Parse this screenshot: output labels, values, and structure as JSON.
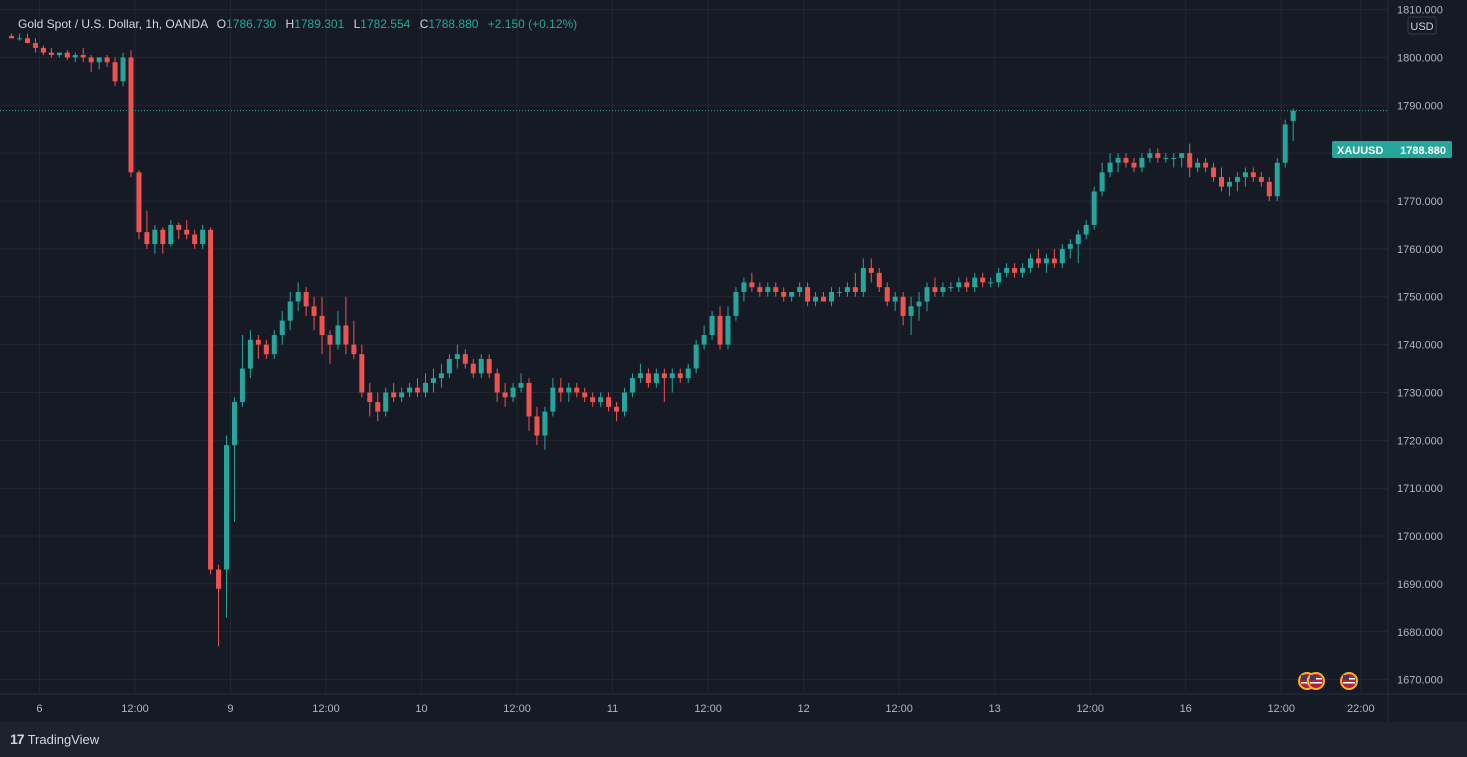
{
  "legend": {
    "symbol": "Gold Spot / U.S. Dollar, 1h, OANDA",
    "o_label": "O",
    "o": "1786.730",
    "h_label": "H",
    "h": "1789.301",
    "l_label": "L",
    "l": "1782.554",
    "c_label": "C",
    "c": "1788.880",
    "change": "+2.150 (+0.12%)"
  },
  "brand": "TradingView",
  "colors": {
    "up": "#26a69a",
    "down": "#ef5350",
    "bg": "#161a25",
    "grid": "#232733",
    "text": "#b2b5be"
  },
  "chart_data": {
    "type": "candlestick",
    "symbol": "XAUUSD",
    "currency": "USD",
    "last_price": "1788.880",
    "ylim": [
      1667,
      1812
    ],
    "y_ticks": [
      "1670.000",
      "1680.000",
      "1690.000",
      "1700.000",
      "1710.000",
      "1720.000",
      "1730.000",
      "1740.000",
      "1750.000",
      "1760.000",
      "1770.000",
      "1780.000",
      "1790.000",
      "1800.000",
      "1810.000"
    ],
    "x_ticks": [
      "6",
      "12:00",
      "9",
      "12:00",
      "10",
      "12:00",
      "11",
      "12:00",
      "12",
      "12:00",
      "13",
      "12:00",
      "16",
      "12:00",
      "22:00"
    ],
    "x_tick_index": [
      3.5,
      15.5,
      27.5,
      39.5,
      51.5,
      63.5,
      75.5,
      87.5,
      99.5,
      111.5,
      123.5,
      135.5,
      147.5,
      159.5,
      169.5
    ],
    "candles": [
      [
        1804.5,
        1805,
        1804,
        1804
      ],
      [
        1804,
        1805,
        1803.5,
        1804
      ],
      [
        1804,
        1805,
        1803,
        1803
      ],
      [
        1803,
        1804,
        1801,
        1802
      ],
      [
        1802,
        1802.5,
        1800.5,
        1801
      ],
      [
        1801,
        1802,
        1800,
        1800.5
      ],
      [
        1800.5,
        1801,
        1800,
        1801
      ],
      [
        1801,
        1801.5,
        1799.5,
        1800
      ],
      [
        1800,
        1801,
        1799,
        1800.5
      ],
      [
        1800.5,
        1802,
        1799,
        1800
      ],
      [
        1800,
        1800.5,
        1797,
        1799
      ],
      [
        1799,
        1800,
        1797.5,
        1800
      ],
      [
        1800,
        1800.5,
        1798,
        1799
      ],
      [
        1799,
        1800,
        1794,
        1795
      ],
      [
        1795,
        1801,
        1794,
        1800
      ],
      [
        1800,
        1801.5,
        1775,
        1776
      ],
      [
        1776,
        1776.5,
        1762,
        1763.5
      ],
      [
        1763.5,
        1768,
        1760,
        1761
      ],
      [
        1761,
        1765,
        1759,
        1764
      ],
      [
        1764,
        1764.5,
        1759,
        1761
      ],
      [
        1761,
        1766,
        1760.5,
        1765
      ],
      [
        1765,
        1765.5,
        1762,
        1764
      ],
      [
        1764,
        1766,
        1762,
        1763
      ],
      [
        1763,
        1764,
        1760,
        1761
      ],
      [
        1761,
        1765,
        1760,
        1764
      ],
      [
        1764,
        1764.5,
        1692,
        1693
      ],
      [
        1693,
        1694,
        1677,
        1689
      ],
      [
        1693,
        1721,
        1683,
        1719
      ],
      [
        1719,
        1729,
        1703,
        1728
      ],
      [
        1728,
        1742,
        1727,
        1735
      ],
      [
        1735,
        1743,
        1733,
        1741
      ],
      [
        1741,
        1742,
        1737,
        1740
      ],
      [
        1740,
        1741,
        1737,
        1738
      ],
      [
        1738,
        1743,
        1737,
        1742
      ],
      [
        1742,
        1747,
        1740,
        1745
      ],
      [
        1745,
        1751,
        1743,
        1749
      ],
      [
        1749,
        1753,
        1747,
        1751
      ],
      [
        1751,
        1752,
        1746,
        1748
      ],
      [
        1748,
        1750,
        1743,
        1746
      ],
      [
        1746,
        1750,
        1738,
        1742
      ],
      [
        1742,
        1743,
        1736,
        1740
      ],
      [
        1740,
        1747,
        1739,
        1744
      ],
      [
        1744,
        1750,
        1738,
        1740
      ],
      [
        1740,
        1745,
        1737,
        1738
      ],
      [
        1738,
        1740,
        1729,
        1730
      ],
      [
        1730,
        1732,
        1725,
        1728
      ],
      [
        1728,
        1730,
        1724,
        1726
      ],
      [
        1726,
        1731,
        1725,
        1730
      ],
      [
        1730,
        1732,
        1728,
        1729
      ],
      [
        1729,
        1731,
        1728,
        1730
      ],
      [
        1730,
        1732,
        1729,
        1731
      ],
      [
        1731,
        1733,
        1729,
        1730
      ],
      [
        1730,
        1734,
        1729,
        1732
      ],
      [
        1732,
        1735,
        1730,
        1733
      ],
      [
        1733,
        1736,
        1731,
        1734
      ],
      [
        1734,
        1738,
        1733,
        1737
      ],
      [
        1737,
        1740,
        1735,
        1738
      ],
      [
        1738,
        1739,
        1735,
        1736
      ],
      [
        1736,
        1737,
        1733,
        1734
      ],
      [
        1734,
        1738,
        1733,
        1737
      ],
      [
        1737,
        1738,
        1733,
        1734
      ],
      [
        1734,
        1735,
        1728,
        1730
      ],
      [
        1730,
        1732,
        1727,
        1729
      ],
      [
        1729,
        1732,
        1728,
        1731
      ],
      [
        1731,
        1734,
        1730,
        1732
      ],
      [
        1732,
        1733,
        1722,
        1725
      ],
      [
        1725,
        1727,
        1719,
        1721
      ],
      [
        1721,
        1727,
        1718,
        1726
      ],
      [
        1726,
        1733,
        1725,
        1731
      ],
      [
        1731,
        1733,
        1728,
        1730
      ],
      [
        1730,
        1732,
        1728,
        1731
      ],
      [
        1731,
        1732,
        1729,
        1730
      ],
      [
        1730,
        1731,
        1728,
        1729
      ],
      [
        1729,
        1730,
        1727,
        1728
      ],
      [
        1728,
        1730,
        1727,
        1729
      ],
      [
        1729,
        1730,
        1726,
        1727
      ],
      [
        1727,
        1728,
        1724,
        1726
      ],
      [
        1726,
        1731,
        1725,
        1730
      ],
      [
        1730,
        1734,
        1729,
        1733
      ],
      [
        1733,
        1736,
        1732,
        1734
      ],
      [
        1734,
        1735,
        1731,
        1732
      ],
      [
        1732,
        1735,
        1731,
        1734
      ],
      [
        1734,
        1735,
        1728,
        1733
      ],
      [
        1733,
        1735,
        1730,
        1734
      ],
      [
        1734,
        1735,
        1732,
        1733
      ],
      [
        1733,
        1736,
        1732,
        1735
      ],
      [
        1735,
        1741,
        1734,
        1740
      ],
      [
        1740,
        1744,
        1739,
        1742
      ],
      [
        1742,
        1747,
        1741,
        1746
      ],
      [
        1746,
        1748,
        1739,
        1740
      ],
      [
        1740,
        1748,
        1739,
        1746
      ],
      [
        1746,
        1752,
        1745,
        1751
      ],
      [
        1751,
        1754,
        1749,
        1753
      ],
      [
        1753,
        1755,
        1751,
        1752
      ],
      [
        1752,
        1753,
        1750,
        1751
      ],
      [
        1751,
        1753,
        1750,
        1752
      ],
      [
        1752,
        1753,
        1750,
        1751
      ],
      [
        1751,
        1752,
        1749,
        1750
      ],
      [
        1750,
        1751,
        1749,
        1751
      ],
      [
        1751,
        1753,
        1750,
        1752
      ],
      [
        1752,
        1753,
        1748,
        1749
      ],
      [
        1749,
        1751,
        1748,
        1750
      ],
      [
        1750,
        1751,
        1749,
        1749
      ],
      [
        1749,
        1752,
        1748,
        1751
      ],
      [
        1751,
        1752,
        1750,
        1751
      ],
      [
        1751,
        1753,
        1750,
        1752
      ],
      [
        1752,
        1755,
        1750,
        1751
      ],
      [
        1751,
        1758,
        1750,
        1756
      ],
      [
        1756,
        1758,
        1753,
        1755
      ],
      [
        1755,
        1756,
        1751,
        1752
      ],
      [
        1752,
        1753,
        1748,
        1749
      ],
      [
        1749,
        1751,
        1747,
        1750
      ],
      [
        1750,
        1751,
        1744,
        1746
      ],
      [
        1746,
        1750,
        1742,
        1748
      ],
      [
        1748,
        1751,
        1745,
        1749
      ],
      [
        1749,
        1753,
        1747,
        1752
      ],
      [
        1752,
        1754,
        1750,
        1751
      ],
      [
        1751,
        1753,
        1750,
        1752
      ],
      [
        1752,
        1753,
        1751,
        1752
      ],
      [
        1752,
        1754,
        1751,
        1753
      ],
      [
        1753,
        1754,
        1751,
        1752
      ],
      [
        1752,
        1755,
        1751,
        1754
      ],
      [
        1754,
        1755,
        1752,
        1753
      ],
      [
        1753,
        1754,
        1752,
        1753
      ],
      [
        1753,
        1756,
        1752,
        1755
      ],
      [
        1755,
        1757,
        1754,
        1756
      ],
      [
        1756,
        1757,
        1754,
        1755
      ],
      [
        1755,
        1757,
        1754,
        1756
      ],
      [
        1756,
        1759,
        1755,
        1758
      ],
      [
        1758,
        1760,
        1756,
        1757
      ],
      [
        1757,
        1759,
        1755,
        1758
      ],
      [
        1758,
        1760,
        1756,
        1757
      ],
      [
        1757,
        1761,
        1756,
        1760
      ],
      [
        1760,
        1762,
        1758,
        1761
      ],
      [
        1761,
        1764,
        1757,
        1763
      ],
      [
        1763,
        1766,
        1762,
        1765
      ],
      [
        1765,
        1773,
        1764,
        1772
      ],
      [
        1772,
        1778,
        1771,
        1776
      ],
      [
        1776,
        1780,
        1775,
        1778
      ],
      [
        1778,
        1780,
        1776,
        1779
      ],
      [
        1779,
        1780,
        1777,
        1778
      ],
      [
        1778,
        1779,
        1776,
        1777
      ],
      [
        1777,
        1780,
        1776,
        1779
      ],
      [
        1779,
        1781,
        1778,
        1780
      ],
      [
        1780,
        1781,
        1778,
        1779
      ],
      [
        1779,
        1780,
        1778,
        1779
      ],
      [
        1779,
        1780,
        1777,
        1779
      ],
      [
        1779,
        1780,
        1777,
        1780
      ],
      [
        1780,
        1782,
        1775,
        1777
      ],
      [
        1777,
        1779,
        1776,
        1778
      ],
      [
        1778,
        1779,
        1776,
        1777
      ],
      [
        1777,
        1778,
        1774,
        1775
      ],
      [
        1775,
        1777,
        1772,
        1773
      ],
      [
        1773,
        1775,
        1771,
        1774
      ],
      [
        1774,
        1776,
        1772,
        1775
      ],
      [
        1775,
        1777,
        1773,
        1776
      ],
      [
        1776,
        1777,
        1774,
        1775
      ],
      [
        1775,
        1776,
        1773,
        1774
      ],
      [
        1774,
        1775,
        1770,
        1771
      ],
      [
        1771,
        1779,
        1770,
        1778
      ],
      [
        1778,
        1787,
        1777,
        1786
      ],
      [
        1786.73,
        1789.3,
        1782.55,
        1788.88
      ]
    ]
  }
}
